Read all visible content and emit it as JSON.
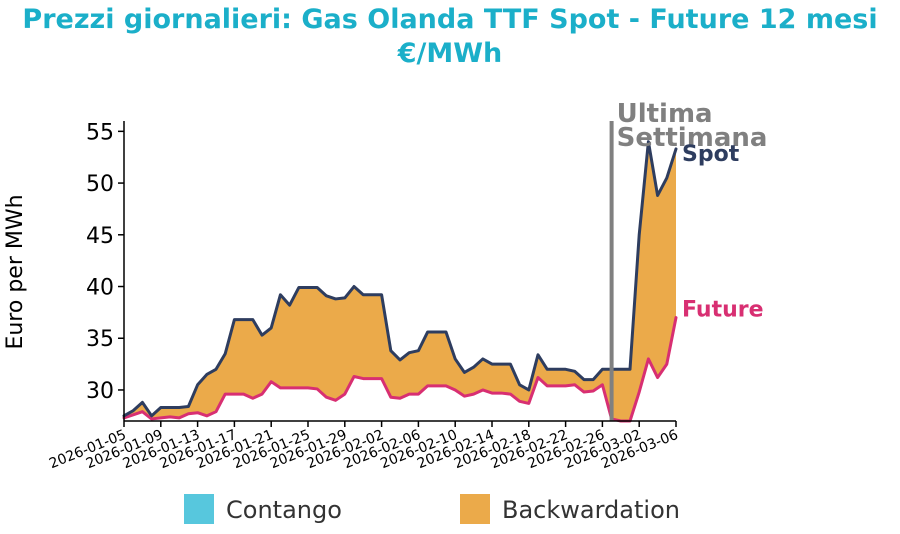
{
  "chart_data": {
    "type": "area",
    "title": "Prezzi giornalieri: Gas Olanda TTF Spot - Future 12 mesi",
    "subtitle": "€/MWh",
    "ylabel": "Euro per MWh",
    "xlabel": "",
    "ylim": [
      27,
      56
    ],
    "yticks": [
      30,
      35,
      40,
      45,
      50,
      55
    ],
    "xlim": [
      "2026-01-05",
      "2026-03-06"
    ],
    "xticks": [
      "2026-01-05",
      "2026-01-09",
      "2026-01-13",
      "2026-01-17",
      "2026-01-21",
      "2026-01-25",
      "2026-01-29",
      "2026-02-02",
      "2026-02-06",
      "2026-02-10",
      "2026-02-14",
      "2026-02-18",
      "2026-02-22",
      "2026-02-26",
      "2026-03-02",
      "2026-03-06"
    ],
    "dates": [
      "2026-01-05",
      "2026-01-06",
      "2026-01-07",
      "2026-01-08",
      "2026-01-09",
      "2026-01-10",
      "2026-01-11",
      "2026-01-12",
      "2026-01-13",
      "2026-01-14",
      "2026-01-15",
      "2026-01-16",
      "2026-01-17",
      "2026-01-18",
      "2026-01-19",
      "2026-01-20",
      "2026-01-21",
      "2026-01-22",
      "2026-01-23",
      "2026-01-24",
      "2026-01-25",
      "2026-01-26",
      "2026-01-27",
      "2026-01-28",
      "2026-01-29",
      "2026-01-30",
      "2026-01-31",
      "2026-02-01",
      "2026-02-02",
      "2026-02-03",
      "2026-02-04",
      "2026-02-05",
      "2026-02-06",
      "2026-02-07",
      "2026-02-08",
      "2026-02-09",
      "2026-02-10",
      "2026-02-11",
      "2026-02-12",
      "2026-02-13",
      "2026-02-14",
      "2026-02-15",
      "2026-02-16",
      "2026-02-17",
      "2026-02-18",
      "2026-02-19",
      "2026-02-20",
      "2026-02-21",
      "2026-02-22",
      "2026-02-23",
      "2026-02-24",
      "2026-02-25",
      "2026-02-26",
      "2026-02-27",
      "2026-02-28",
      "2026-03-01",
      "2026-03-02",
      "2026-03-03",
      "2026-03-04",
      "2026-03-05",
      "2026-03-06"
    ],
    "series": [
      {
        "name": "Spot",
        "color": "#2e3d5f",
        "values": [
          27.5,
          28.0,
          28.8,
          27.5,
          28.3,
          28.3,
          28.3,
          28.4,
          30.5,
          31.5,
          32.0,
          33.5,
          36.8,
          36.8,
          36.8,
          35.3,
          36.0,
          39.2,
          38.2,
          39.9,
          39.9,
          39.9,
          39.1,
          38.8,
          38.9,
          40.0,
          39.2,
          39.2,
          39.2,
          33.8,
          32.9,
          33.6,
          33.8,
          35.6,
          35.6,
          35.6,
          33.0,
          31.7,
          32.2,
          33.0,
          32.5,
          32.5,
          32.5,
          30.5,
          30.0,
          33.4,
          32.0,
          32.0,
          32.0,
          31.8,
          31.0,
          31.0,
          32.0,
          32.0,
          32.0,
          32.0,
          45.0,
          54.0,
          48.8,
          50.5,
          53.3
        ]
      },
      {
        "name": "Future",
        "color": "#d82f72",
        "values": [
          27.3,
          27.6,
          27.9,
          27.2,
          27.3,
          27.4,
          27.3,
          27.7,
          27.8,
          27.5,
          27.9,
          29.6,
          29.6,
          29.6,
          29.2,
          29.6,
          30.8,
          30.2,
          30.2,
          30.2,
          30.2,
          30.1,
          29.3,
          29.0,
          29.6,
          31.3,
          31.1,
          31.1,
          31.1,
          29.3,
          29.2,
          29.6,
          29.6,
          30.4,
          30.4,
          30.4,
          30.0,
          29.4,
          29.6,
          30.0,
          29.7,
          29.7,
          29.6,
          28.9,
          28.7,
          31.2,
          30.4,
          30.4,
          30.4,
          30.5,
          29.8,
          29.9,
          30.5,
          27.2,
          27.0,
          27.0,
          29.8,
          33.0,
          31.2,
          32.5,
          37.0
        ]
      }
    ],
    "fill": {
      "contango_color": "#57c7dd",
      "backwardation_color": "#ebaa4a"
    },
    "annotations": {
      "vline_date": "2026-02-27",
      "vline_color": "#808080",
      "vline_label_1": "Ultima",
      "vline_label_2": "Settimana"
    },
    "legend": {
      "position": "bottom",
      "items": [
        {
          "label": "Contango",
          "color": "#57c7dd"
        },
        {
          "label": "Backwardation",
          "color": "#ebaa4a"
        }
      ]
    }
  }
}
